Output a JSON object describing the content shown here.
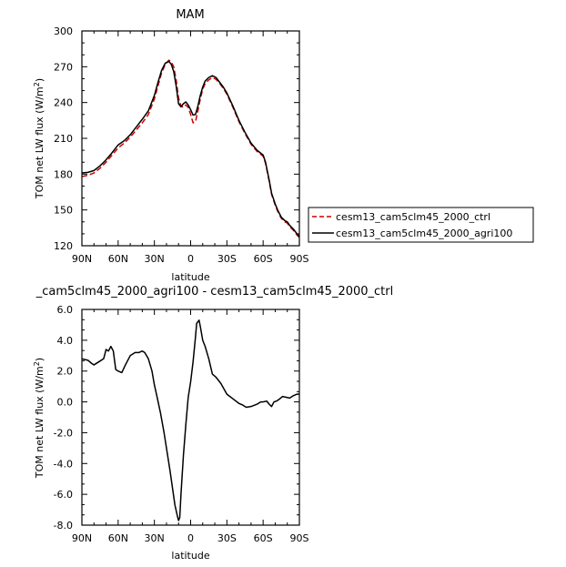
{
  "chart_data": [
    {
      "type": "line",
      "title": "MAM",
      "xlabel": "latitude",
      "ylabel": "TOM net LW flux (W/m",
      "ylabel_sup": "2",
      "ylabel_end": ")",
      "x_ticks": [
        -90,
        -60,
        -30,
        0,
        30,
        60,
        90
      ],
      "x_tick_labels": [
        "90N",
        "60N",
        "30N",
        "0",
        "30S",
        "60S",
        "90S"
      ],
      "xlim": [
        -90,
        90
      ],
      "ylim": [
        120,
        300
      ],
      "y_ticks": [
        120,
        150,
        180,
        210,
        240,
        270,
        300
      ],
      "y_tick_labels": [
        "120",
        "150",
        "180",
        "210",
        "240",
        "270",
        "300"
      ],
      "legend_position": "right",
      "series": [
        {
          "name": "cesm13_cam5clm45_2000_ctrl",
          "color": "#cc0000",
          "dash": true,
          "x": [
            -90,
            -85,
            -80,
            -75,
            -70,
            -65,
            -60,
            -55,
            -50,
            -45,
            -40,
            -35,
            -30,
            -27,
            -24,
            -21,
            -18,
            -16,
            -14,
            -12,
            -10,
            -8,
            -6,
            -4,
            -2,
            0,
            2,
            4,
            6,
            8,
            10,
            12,
            15,
            18,
            21,
            24,
            27,
            30,
            35,
            40,
            45,
            50,
            55,
            60,
            62,
            65,
            67,
            70,
            72,
            75,
            78,
            80,
            82,
            85,
            88,
            90
          ],
          "y": [
            178,
            179,
            181,
            185,
            190,
            196,
            202,
            206,
            211,
            217,
            223,
            230,
            243,
            254,
            265,
            272,
            275.5,
            274,
            270,
            259,
            244,
            237,
            236,
            238,
            236,
            230,
            223,
            224,
            233,
            243,
            251,
            256,
            259,
            261,
            259.5,
            256,
            252,
            247,
            236,
            224,
            214,
            205,
            199,
            195,
            189,
            174,
            163,
            154,
            149,
            143,
            140,
            139,
            136,
            133,
            129,
            127
          ]
        },
        {
          "name": "cesm13_cam5clm45_2000_agri100",
          "color": "#000000",
          "dash": false,
          "x": [
            -90,
            -85,
            -80,
            -75,
            -70,
            -65,
            -60,
            -55,
            -50,
            -45,
            -40,
            -35,
            -30,
            -27,
            -24,
            -21,
            -18,
            -16,
            -14,
            -12,
            -10,
            -8,
            -6,
            -4,
            -2,
            0,
            2,
            4,
            6,
            8,
            10,
            12,
            15,
            18,
            21,
            24,
            27,
            30,
            35,
            40,
            45,
            50,
            55,
            60,
            62,
            65,
            67,
            70,
            72,
            75,
            78,
            80,
            82,
            85,
            88,
            90
          ],
          "y": [
            181,
            181.5,
            183,
            187,
            192,
            198,
            204.5,
            208,
            213,
            219.5,
            226,
            233,
            246,
            257,
            267,
            273,
            274.5,
            272,
            266,
            254,
            239,
            236.5,
            239,
            240.5,
            238,
            234,
            229.5,
            230,
            237,
            246,
            253,
            258,
            261,
            262.5,
            261,
            257,
            253,
            248,
            237,
            225,
            215,
            206,
            200,
            196,
            190,
            175,
            164,
            155,
            150,
            144,
            141,
            140,
            137,
            134,
            130,
            127.5
          ]
        }
      ]
    },
    {
      "type": "line",
      "title": "_cam5clm45_2000_agri100 - cesm13_cam5clm45_2000_ctrl",
      "xlabel": "latitude",
      "ylabel": "TOM net LW flux (W/m",
      "ylabel_sup": "2",
      "ylabel_end": ")",
      "x_ticks": [
        -90,
        -60,
        -30,
        0,
        30,
        60,
        90
      ],
      "x_tick_labels": [
        "90N",
        "60N",
        "30N",
        "0",
        "30S",
        "60S",
        "90S"
      ],
      "xlim": [
        -90,
        90
      ],
      "ylim": [
        -8,
        6
      ],
      "y_ticks": [
        -8,
        -6,
        -4,
        -2,
        0,
        2,
        4,
        6
      ],
      "y_tick_labels": [
        "-8.0",
        "-6.0",
        "-4.0",
        "-2.0",
        "0.0",
        "2.0",
        "4.0",
        "6.0"
      ],
      "series": [
        {
          "name": "",
          "color": "#000000",
          "dash": false,
          "x": [
            -90,
            -85,
            -82,
            -80,
            -76,
            -72,
            -70,
            -68,
            -66,
            -64,
            -62,
            -60,
            -57,
            -54,
            -50,
            -46,
            -43,
            -40,
            -38,
            -35,
            -32,
            -30,
            -28,
            -25,
            -22,
            -20,
            -17,
            -15,
            -13,
            -11,
            -10,
            -9,
            -8,
            -6,
            -4,
            -2,
            0,
            2,
            4,
            5,
            6,
            7,
            8,
            10,
            12,
            15,
            18,
            21,
            25,
            30,
            35,
            40,
            43,
            46,
            50,
            55,
            58,
            60,
            63,
            65,
            67,
            69,
            71,
            73,
            76,
            79,
            82,
            85,
            88,
            90
          ],
          "y": [
            2.8,
            2.7,
            2.5,
            2.4,
            2.6,
            2.8,
            3.4,
            3.3,
            3.6,
            3.3,
            2.1,
            2.0,
            1.9,
            2.4,
            3.0,
            3.2,
            3.2,
            3.3,
            3.2,
            2.8,
            2.0,
            1.1,
            0.4,
            -0.7,
            -2.0,
            -3.0,
            -4.5,
            -5.6,
            -6.7,
            -7.4,
            -7.7,
            -7.5,
            -6.0,
            -3.5,
            -1.5,
            0.3,
            1.3,
            2.6,
            4.2,
            5.1,
            5.2,
            5.3,
            4.9,
            4.0,
            3.6,
            2.8,
            1.8,
            1.6,
            1.2,
            0.5,
            0.2,
            -0.1,
            -0.2,
            -0.35,
            -0.3,
            -0.15,
            0.0,
            0.0,
            0.05,
            -0.15,
            -0.3,
            0.0,
            0.05,
            0.15,
            0.35,
            0.3,
            0.25,
            0.4,
            0.5,
            0.5
          ]
        }
      ]
    }
  ]
}
